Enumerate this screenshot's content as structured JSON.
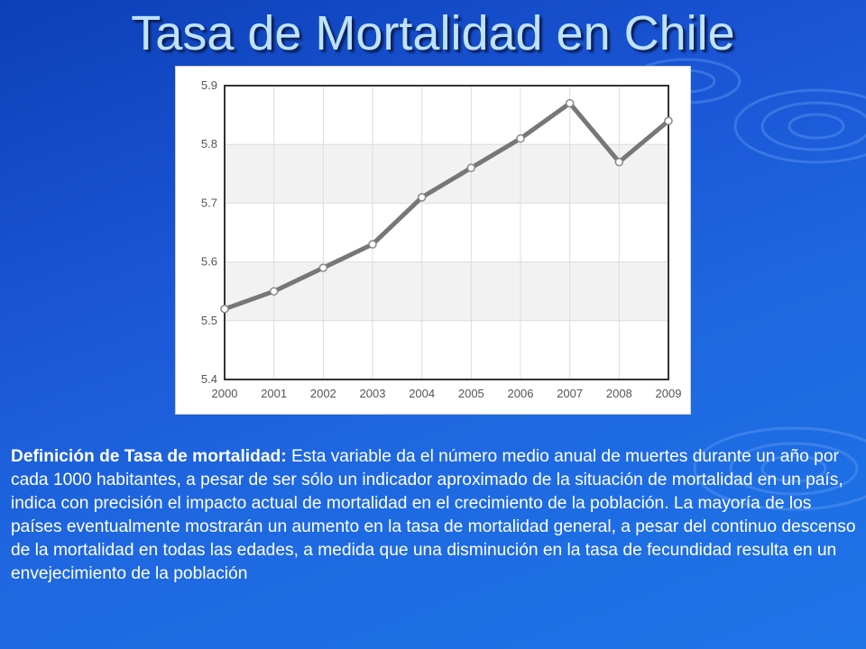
{
  "slide": {
    "title": "Tasa de Mortalidad en Chile",
    "definition_term": "Definición de Tasa de mortalidad:",
    "definition_text": " Esta variable da el número medio anual de muertes durante un año por cada 1000 habitantes, a pesar de ser sólo un indicador aproximado de la situación de mortalidad en un país, indica con precisión el impacto actual de mortalidad en el crecimiento de la población. La mayoría de los países eventualmente mostrarán un aumento en la tasa de mortalidad general, a pesar del continuo descenso de la mortalidad en todas las edades, a medida que una disminución en la tasa de fecundidad resulta en un envejecimiento de la población"
  },
  "colors": {
    "background": "#1a56d6",
    "title": "#bfe3ff",
    "line": "#777777",
    "marker_fill": "#ffffff",
    "plot_band": "#f2f2f2"
  },
  "chart_data": {
    "type": "line",
    "title": "",
    "xlabel": "",
    "ylabel": "",
    "categories": [
      "2000",
      "2001",
      "2002",
      "2003",
      "2004",
      "2005",
      "2006",
      "2007",
      "2008",
      "2009"
    ],
    "series": [
      {
        "values": [
          5.52,
          5.55,
          5.59,
          5.63,
          5.71,
          5.76,
          5.81,
          5.87,
          5.77,
          5.84
        ]
      }
    ],
    "ylim": [
      5.4,
      5.9
    ],
    "yticks": [
      "5.4",
      "5.5",
      "5.6",
      "5.7",
      "5.8",
      "5.9"
    ],
    "grid": true,
    "legend": "none"
  }
}
